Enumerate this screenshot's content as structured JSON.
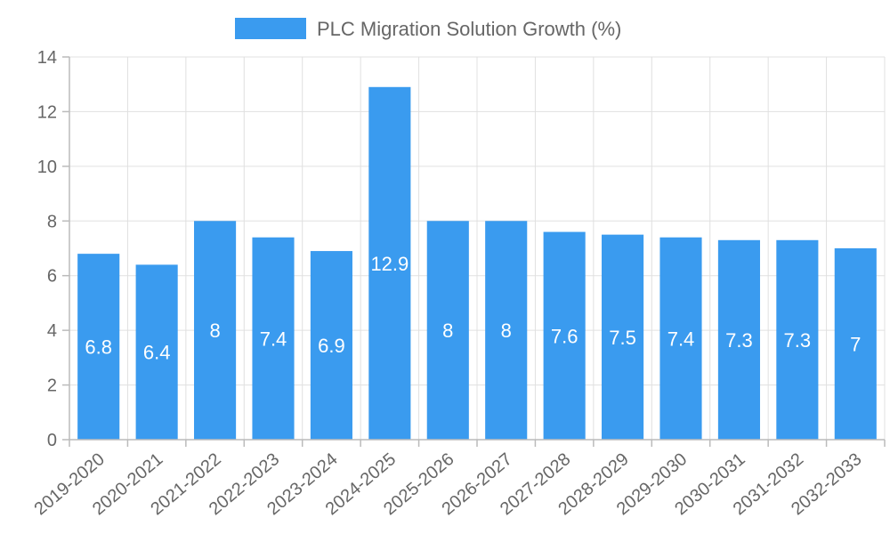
{
  "colors": {
    "bar": "#3A9BEF",
    "grid": "#e0e0e0",
    "text": "#666666",
    "value_text": "#ffffff"
  },
  "chart_data": {
    "type": "bar",
    "title": "",
    "legend": {
      "label": "PLC Migration Solution Growth (%)",
      "position": "top-center"
    },
    "categories": [
      "2019-2020",
      "2020-2021",
      "2021-2022",
      "2022-2023",
      "2023-2024",
      "2024-2025",
      "2025-2026",
      "2026-2027",
      "2027-2028",
      "2028-2029",
      "2029-2030",
      "2030-2031",
      "2031-2032",
      "2032-2033"
    ],
    "series": [
      {
        "name": "PLC Migration Solution Growth (%)",
        "values": [
          6.8,
          6.4,
          8,
          7.4,
          6.9,
          12.9,
          8,
          8,
          7.6,
          7.5,
          7.4,
          7.3,
          7.3,
          7
        ]
      }
    ],
    "value_labels": [
      "6.8",
      "6.4",
      "8",
      "7.4",
      "6.9",
      "12.9",
      "8",
      "8",
      "7.6",
      "7.5",
      "7.4",
      "7.3",
      "7.3",
      "7"
    ],
    "y_ticks": [
      "0",
      "2",
      "4",
      "6",
      "8",
      "10",
      "12",
      "14"
    ],
    "xlabel": "",
    "ylabel": "",
    "ylim": [
      0,
      14
    ],
    "grid": true
  }
}
